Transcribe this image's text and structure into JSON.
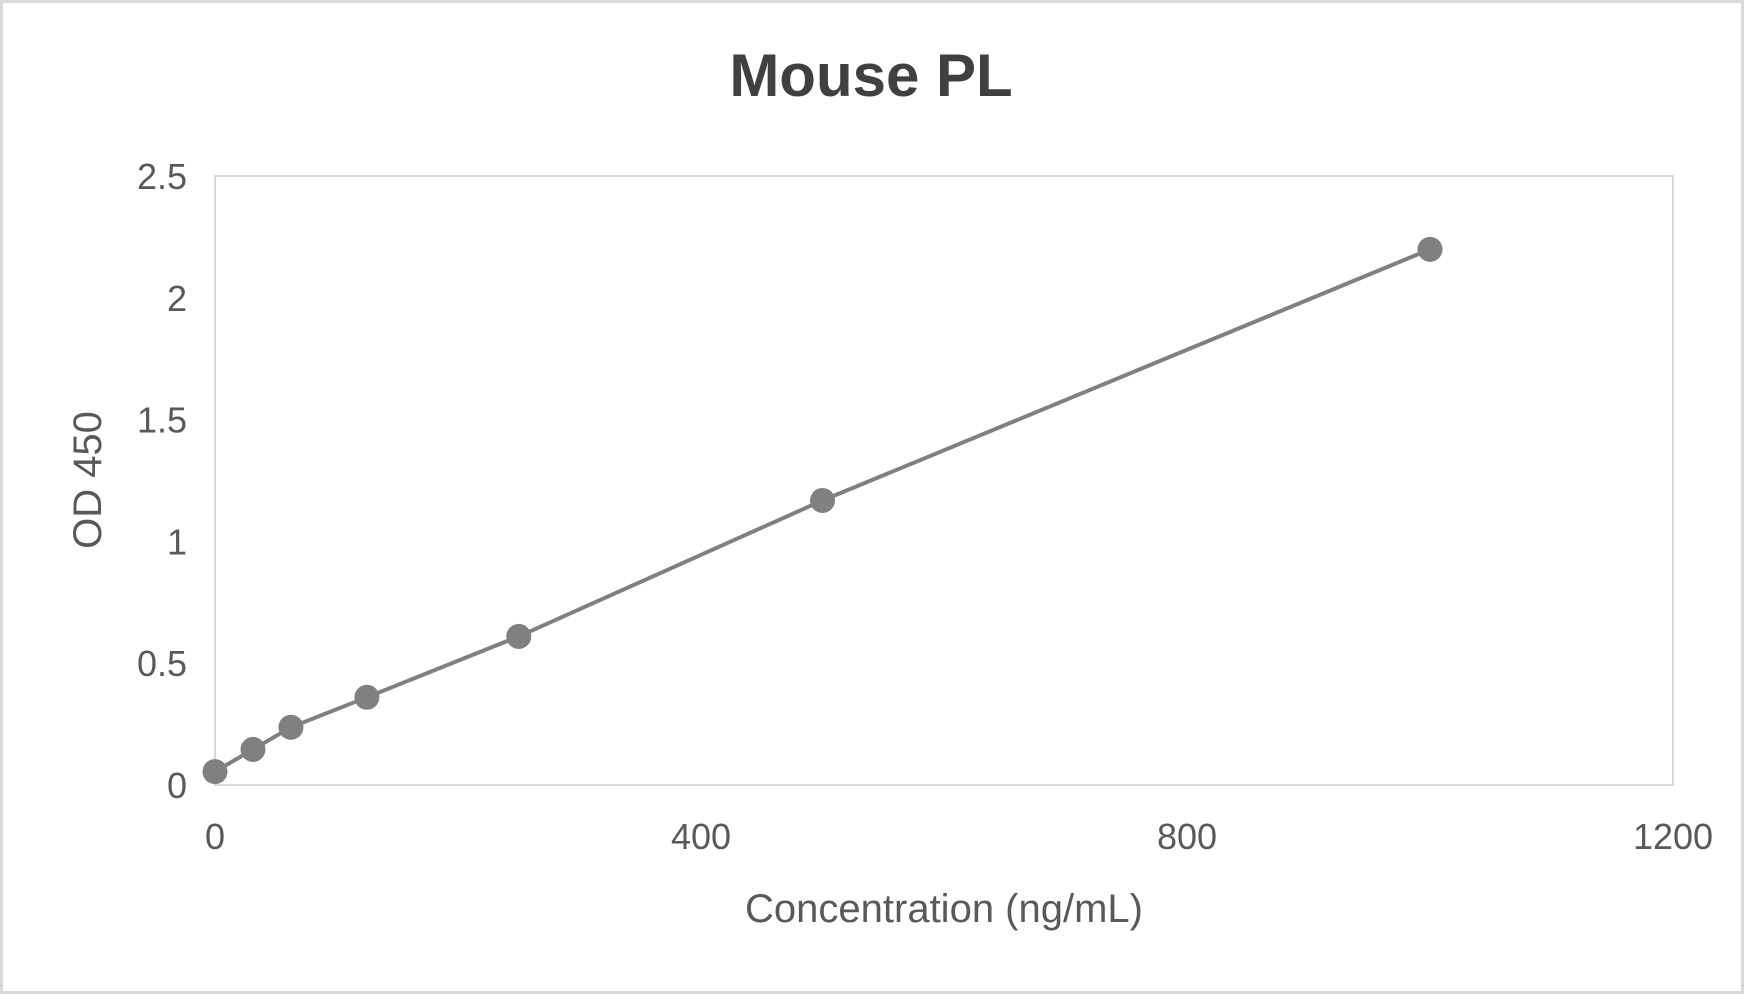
{
  "chart_data": {
    "type": "line",
    "title": "Mouse PL",
    "xlabel": "Concentration (ng/mL)",
    "ylabel": "OD 450",
    "xlim": [
      0,
      1200
    ],
    "ylim": [
      0,
      2.5
    ],
    "xticks": [
      "0",
      "400",
      "800",
      "1200"
    ],
    "yticks": [
      "0",
      "0.5",
      "1",
      "1.5",
      "2",
      "2.5"
    ],
    "grid": false,
    "legend": "none",
    "markers": true,
    "color": "#808080",
    "x": [
      0,
      31.25,
      62.5,
      125,
      250,
      500,
      1000
    ],
    "y": [
      0.055,
      0.146,
      0.237,
      0.36,
      0.61,
      1.168,
      2.199
    ]
  }
}
